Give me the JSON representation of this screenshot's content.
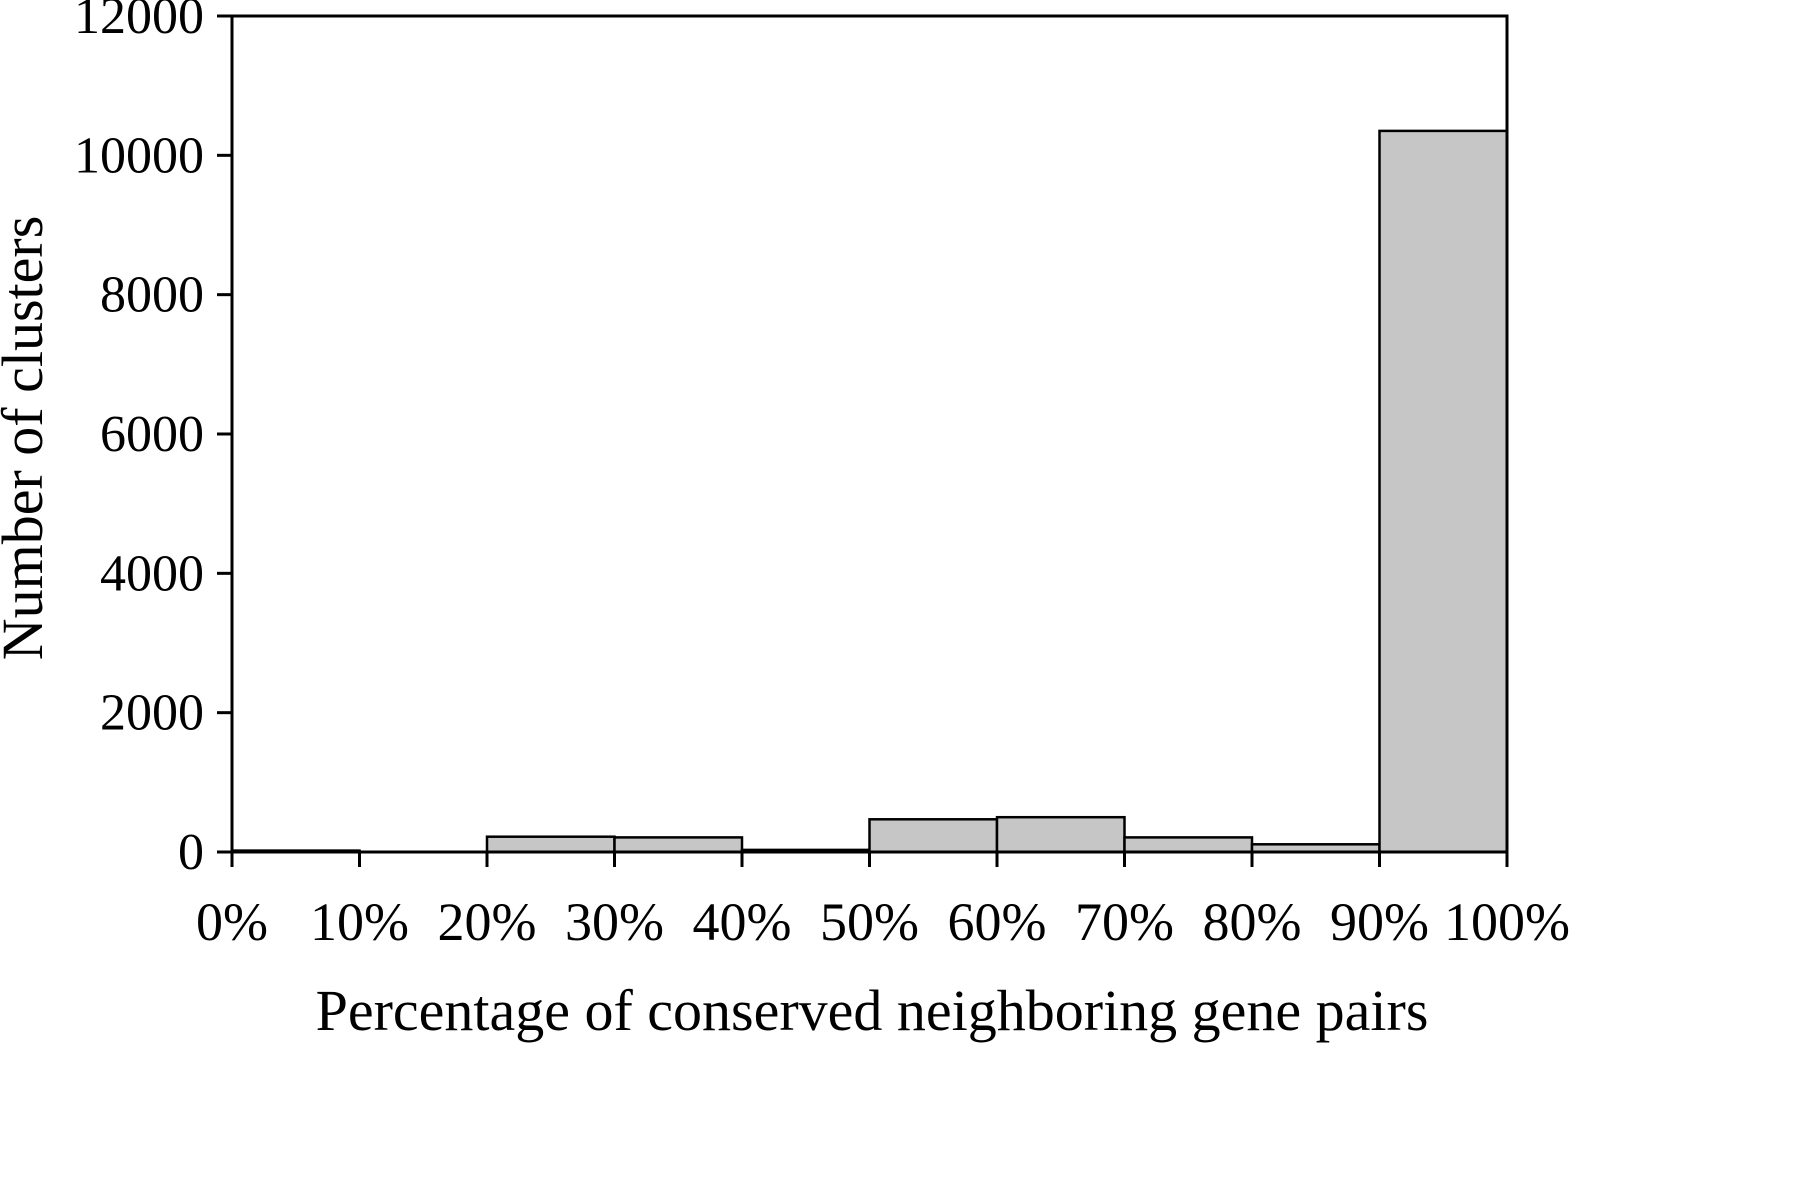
{
  "chart_data": {
    "type": "bar",
    "subtype": "histogram",
    "title": "",
    "xlabel": "Percentage of conserved neighboring gene pairs",
    "ylabel": "Number of clusters",
    "categories": [
      "0-10%",
      "10-20%",
      "20-30%",
      "30-40%",
      "40-50%",
      "50-60%",
      "60-70%",
      "70-80%",
      "80-90%",
      "90-100%"
    ],
    "values": [
      20,
      0,
      220,
      210,
      30,
      470,
      500,
      210,
      110,
      10350
    ],
    "x_tick_labels": [
      "0%",
      "10%",
      "20%",
      "30%",
      "40%",
      "50%",
      "60%",
      "70%",
      "80%",
      "90%",
      "100%"
    ],
    "yticks": [
      0,
      2000,
      4000,
      6000,
      8000,
      10000,
      12000
    ],
    "ylim": [
      0,
      12000
    ],
    "grid": false,
    "legend": "none",
    "bar_color": "#c6c6c6",
    "bar_edge_color": "#000000",
    "axis_color": "#000000",
    "background_color": "#ffffff"
  }
}
